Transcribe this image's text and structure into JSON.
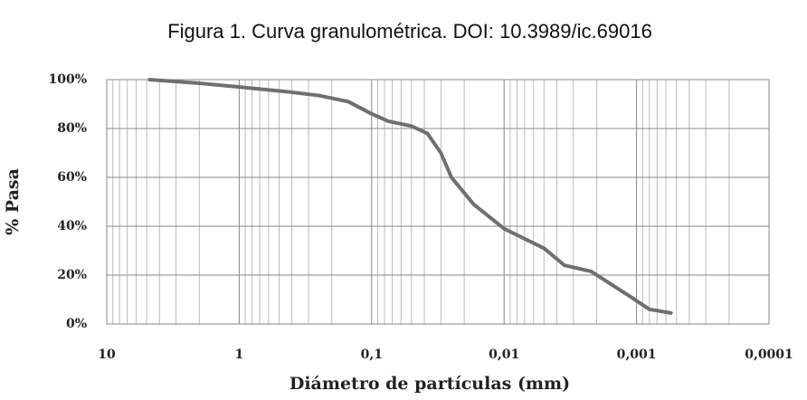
{
  "chart_data": {
    "type": "line",
    "title": "Figura 1. Curva granulométrica. DOI: 10.3989/ic.69016",
    "x_label": "Diámetro de partículas (mm)",
    "y_label": "% Pasa",
    "x_scale": "log",
    "minor_grid": true,
    "grid": true,
    "xlim": [
      10,
      0.0001
    ],
    "xticks": [
      10,
      1,
      {
        "value": 0.1,
        "label": "0,1"
      },
      {
        "value": 0.01,
        "label": "0,01"
      },
      {
        "value": 0.001,
        "label": "0,001"
      },
      {
        "value": 0.0001,
        "label": "0,0001"
      }
    ],
    "ylim": [
      0,
      100
    ],
    "yticks": [
      {
        "value": 0,
        "label": "0%"
      },
      {
        "value": 20,
        "label": "20%"
      },
      {
        "value": 40,
        "label": "40%"
      },
      {
        "value": 60,
        "label": "60%"
      },
      {
        "value": 80,
        "label": "80%"
      },
      {
        "value": 100,
        "label": "100%"
      }
    ],
    "x": [
      4.75,
      2,
      1,
      0.425,
      0.25,
      0.15,
      0.1,
      0.075,
      0.05,
      0.038,
      0.03,
      0.025,
      0.017,
      0.01,
      0.005,
      0.0035,
      0.0022,
      0.0011,
      0.0008,
      0.00055
    ],
    "series": [
      {
        "color": "#6f6f6f",
        "values": [
          100,
          98.5,
          97,
          95,
          93.5,
          91,
          86,
          83,
          81,
          78,
          70,
          60,
          49,
          39,
          31,
          24,
          21.5,
          11,
          6,
          4.5
        ]
      }
    ]
  }
}
